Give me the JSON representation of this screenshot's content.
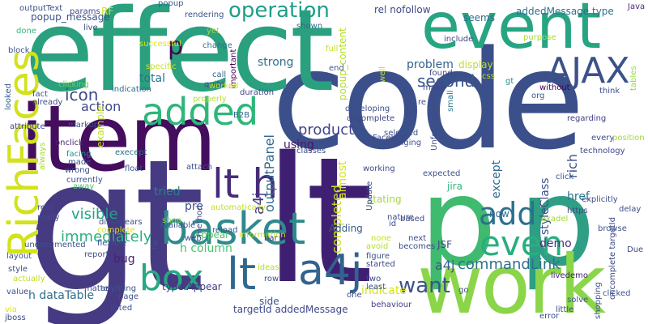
{
  "words": [
    {
      "text": "code",
      "color": "#3b4f8a"
    },
    {
      "text": "lt",
      "color": "#3f1f72"
    },
    {
      "text": "gt",
      "color": "#463a82"
    },
    {
      "text": "effect",
      "color": "#2aa07e"
    },
    {
      "text": "item",
      "color": "#440d5e"
    },
    {
      "text": "p",
      "color": "#3fba6f"
    },
    {
      "text": "p",
      "color": "#2e9f84"
    },
    {
      "text": "work",
      "color": "#8bd549"
    },
    {
      "text": "event",
      "color": "#27a582"
    },
    {
      "text": "AJAX",
      "color": "#3b5289"
    },
    {
      "text": "added",
      "color": "#2fb67a"
    },
    {
      "text": "RichFaces",
      "color": "#d2e21b"
    },
    {
      "text": "basket",
      "color": "#2f8a8c"
    },
    {
      "text": "lt h",
      "color": "#472c7a"
    },
    {
      "text": "lt",
      "color": "#31688e"
    },
    {
      "text": "a4j",
      "color": "#33638d"
    },
    {
      "text": "box",
      "color": "#26a884"
    },
    {
      "text": "add",
      "color": "#2c708e"
    },
    {
      "text": "even",
      "color": "#29af7f"
    },
    {
      "text": "operation",
      "color": "#1f9e89"
    },
    {
      "text": "want",
      "color": "#3a538b"
    },
    {
      "text": "product",
      "color": "#414487"
    },
    {
      "text": "a4j",
      "color": "#38588c"
    },
    {
      "text": "commandLink",
      "color": "#2d708e"
    },
    {
      "text": "p",
      "color": "#440154"
    },
    {
      "text": "second",
      "color": "#3a548c"
    },
    {
      "text": "icon",
      "color": "#3e4989"
    },
    {
      "text": "action",
      "color": "#3f4788"
    },
    {
      "text": "visible",
      "color": "#20a386"
    },
    {
      "text": "immediately",
      "color": "#2ab07f"
    },
    {
      "text": "popup_message",
      "color": "#3b528b"
    },
    {
      "text": "outputPanel",
      "color": "#306a8e"
    },
    {
      "text": "a4j",
      "color": "#443983"
    },
    {
      "text": "completed",
      "color": "#c8e020"
    },
    {
      "text": "problem",
      "color": "#33638d"
    },
    {
      "text": "display",
      "color": "#bddf26"
    },
    {
      "text": "strong",
      "color": "#2d718e"
    },
    {
      "text": "total",
      "color": "#2c728e"
    },
    {
      "text": "rich",
      "color": "#3d4d8a"
    },
    {
      "text": "except",
      "color": "#2f6b8e"
    },
    {
      "text": "styleClass",
      "color": "#3b518b"
    },
    {
      "text": "href",
      "color": "#2a768e"
    },
    {
      "text": "demo",
      "color": "#46307e"
    },
    {
      "text": "using",
      "color": "#48186a"
    },
    {
      "text": "pre",
      "color": "#3c4f8a"
    },
    {
      "text": "h column",
      "color": "#4ac16d"
    },
    {
      "text": "tried",
      "color": "#26828e"
    },
    {
      "text": "Appear",
      "color": "#4ec36b"
    },
    {
      "text": "bug",
      "color": "#482173"
    },
    {
      "text": "h dataTable",
      "color": "#2e6f8e"
    },
    {
      "text": "type Appear",
      "color": "#443983"
    },
    {
      "text": "jira",
      "color": "#32b67a"
    },
    {
      "text": "indicate",
      "color": "#d8e219"
    },
    {
      "text": "stating",
      "color": "#a0da39"
    },
    {
      "text": "Adding",
      "color": "#38598c"
    },
    {
      "text": "now",
      "color": "#2e6e8e"
    },
    {
      "text": "almost",
      "color": "#d5e21a"
    },
    {
      "text": "rel nofollow",
      "color": "#3f4889"
    },
    {
      "text": "seems",
      "color": "#2f6c8e"
    },
    {
      "text": "addedMessage type",
      "color": "#2d708e"
    },
    {
      "text": "popup_content",
      "color": "#b5de2b"
    },
    {
      "text": "example",
      "color": "#c2df23"
    },
    {
      "text": "outputText",
      "color": "#3d4e8a"
    },
    {
      "text": "params",
      "color": "#404588"
    },
    {
      "text": "RF",
      "color": "#cde11d"
    },
    {
      "text": "popup",
      "color": "#34618d"
    },
    {
      "text": "rendering",
      "color": "#3b528b"
    },
    {
      "text": "Java",
      "color": "#472d7b"
    },
    {
      "text": "done",
      "color": "#35b779"
    },
    {
      "text": "live",
      "color": "#3e4a89"
    },
    {
      "text": "successful",
      "color": "#dde318"
    },
    {
      "text": "yet",
      "color": "#a5db36"
    },
    {
      "text": "shown",
      "color": "#31688e"
    },
    {
      "text": "include",
      "color": "#404688"
    },
    {
      "text": "purpose",
      "color": "#a8db34"
    },
    {
      "text": "change",
      "color": "#2d708e"
    },
    {
      "text": "block",
      "color": "#3b518b"
    },
    {
      "text": "clicking",
      "color": "#6ccd5a"
    },
    {
      "text": "specific",
      "color": "#cae11f"
    },
    {
      "text": "call",
      "color": "#33638d"
    },
    {
      "text": "quite",
      "color": "#3e4a89"
    },
    {
      "text": "important",
      "color": "#440154"
    },
    {
      "text": "full",
      "color": "#c0df25"
    },
    {
      "text": "end",
      "color": "#38598c"
    },
    {
      "text": "well",
      "color": "#b8de29"
    },
    {
      "text": "make",
      "color": "#404688"
    },
    {
      "text": "found",
      "color": "#3e4c8a"
    },
    {
      "text": "gt",
      "color": "#20928c"
    },
    {
      "text": "tables",
      "color": "#95d840"
    },
    {
      "text": "indication",
      "color": "#2f6c8e"
    },
    {
      "text": "worked",
      "color": "#c5e021"
    },
    {
      "text": "duration",
      "color": "#3f4788"
    },
    {
      "text": "without",
      "color": "#440154"
    },
    {
      "text": "think",
      "color": "#3c4f8a"
    },
    {
      "text": "org",
      "color": "#38588c"
    },
    {
      "text": "fact",
      "color": "#3b528b"
    },
    {
      "text": "already",
      "color": "#3e4989"
    },
    {
      "text": "looked",
      "color": "#35608d"
    },
    {
      "text": "markup",
      "color": "#3e4c8a"
    },
    {
      "text": "properly",
      "color": "#b5de2b"
    },
    {
      "text": "B2B",
      "color": "#31688e"
    },
    {
      "text": "developing",
      "color": "#3d4d8a"
    },
    {
      "text": "re",
      "color": "#3b518b"
    },
    {
      "text": "small",
      "color": "#2c738e"
    },
    {
      "text": "regarding",
      "color": "#433e85"
    },
    {
      "text": "attribute",
      "color": "#3f4788"
    },
    {
      "text": "onclick",
      "color": "#482979"
    },
    {
      "text": "facing",
      "color": "#20928c"
    },
    {
      "text": "made",
      "color": "#39558c"
    },
    {
      "text": "wrong",
      "color": "#3d4d8a"
    },
    {
      "text": "execept",
      "color": "#2d718e"
    },
    {
      "text": "float",
      "color": "#3c508b"
    },
    {
      "text": "attach",
      "color": "#3e4c8a"
    },
    {
      "text": "oncomplete",
      "color": "#3f4788"
    },
    {
      "text": "Facelets",
      "color": "#3e4989"
    },
    {
      "text": "selected",
      "color": "#3b528b"
    },
    {
      "text": "changing",
      "color": "#3e4c8a"
    },
    {
      "text": "Unfortunately",
      "color": "#3d4e8a"
    },
    {
      "text": "every",
      "color": "#3e4989"
    },
    {
      "text": "position",
      "color": "#9fda3a"
    },
    {
      "text": "technology",
      "color": "#3f4788"
    },
    {
      "text": "classes",
      "color": "#3c4f8a"
    },
    {
      "text": "always",
      "color": "#a8db34"
    },
    {
      "text": "currently",
      "color": "#3b528b"
    },
    {
      "text": "away",
      "color": "#4ac16d"
    },
    {
      "text": "dissapears",
      "color": "#3e4c8a"
    },
    {
      "text": "shop",
      "color": "#7fd34e"
    },
    {
      "text": "automatically",
      "color": "#c2df23"
    },
    {
      "text": "working",
      "color": "#3e4989"
    },
    {
      "text": "expected",
      "color": "#3c4f8a"
    },
    {
      "text": "click",
      "color": "#38588c"
    },
    {
      "text": "explicitly",
      "color": "#3e4c8a"
    },
    {
      "text": "delay",
      "color": "#3d4d8a"
    },
    {
      "text": "exadel",
      "color": "#a2da37"
    },
    {
      "text": "https",
      "color": "#3e4989"
    },
    {
      "text": "browse",
      "color": "#3b528b"
    },
    {
      "text": "Due",
      "color": "#3e4c8a"
    },
    {
      "text": "oncomplete targetId",
      "color": "#3e4989"
    },
    {
      "text": "livedemo",
      "color": "#482173"
    },
    {
      "text": "clicked",
      "color": "#3b528b"
    },
    {
      "text": "shopping",
      "color": "#3b518b"
    },
    {
      "text": "solve",
      "color": "#39558c"
    },
    {
      "text": "little",
      "color": "#3f4788"
    },
    {
      "text": "error",
      "color": "#3d4e8a"
    },
    {
      "text": "behaviour",
      "color": "#433e85"
    },
    {
      "text": "two",
      "color": "#3e4c8a"
    },
    {
      "text": "least",
      "color": "#3b528b"
    },
    {
      "text": "started",
      "color": "#3e4989"
    },
    {
      "text": "figure",
      "color": "#3b528b"
    },
    {
      "text": "avoid",
      "color": "#b5de2b"
    },
    {
      "text": "none",
      "color": "#c8e020"
    },
    {
      "text": "next",
      "color": "#3e4c8a"
    },
    {
      "text": "becomes",
      "color": "#3c4f8a"
    },
    {
      "text": "based",
      "color": "#3e4989"
    },
    {
      "text": "id",
      "color": "#3b528b"
    },
    {
      "text": "nature",
      "color": "#3e4c8a"
    },
    {
      "text": "Update",
      "color": "#3d4d8a"
    },
    {
      "text": "JSF",
      "color": "#3f4788"
    },
    {
      "text": "real",
      "color": "#3e4989"
    },
    {
      "text": "really",
      "color": "#3b528b"
    },
    {
      "text": "undocumented",
      "color": "#3b528b"
    },
    {
      "text": "complete",
      "color": "#d8e219"
    },
    {
      "text": "flexible",
      "color": "#3e4c8a"
    },
    {
      "text": "report",
      "color": "#3d4e8a"
    },
    {
      "text": "available",
      "color": "#39558c"
    },
    {
      "text": "web",
      "color": "#3e4989"
    },
    {
      "text": "far",
      "color": "#3c4f8a"
    },
    {
      "text": "method",
      "color": "#3e4c8a"
    },
    {
      "text": "reload",
      "color": "#3b528b"
    },
    {
      "text": "information",
      "color": "#c8e020"
    },
    {
      "text": "bar",
      "color": "#3e4989"
    },
    {
      "text": "ideas",
      "color": "#b5de2b"
    },
    {
      "text": "row",
      "color": "#3e4c8a"
    },
    {
      "text": "side",
      "color": "#3b528b"
    },
    {
      "text": "layout",
      "color": "#3b528b"
    },
    {
      "text": "actually",
      "color": "#c2df23"
    },
    {
      "text": "style",
      "color": "#3e4c8a"
    },
    {
      "text": "value",
      "color": "#3b528b"
    },
    {
      "text": "via",
      "color": "#dde318"
    },
    {
      "text": "jboss",
      "color": "#3e4989"
    },
    {
      "text": "matter",
      "color": "#3e4c8a"
    },
    {
      "text": "anything",
      "color": "#3b528b"
    },
    {
      "text": "page",
      "color": "#3e4c8a"
    },
    {
      "text": "listed",
      "color": "#3d4e8a"
    },
    {
      "text": "targetId addedMessage",
      "color": "#3e4989"
    },
    {
      "text": "go",
      "color": "#3b528b"
    },
    {
      "text": "one",
      "color": "#3e4989"
    },
    {
      "text": "css",
      "color": "#b5de2b"
    }
  ]
}
